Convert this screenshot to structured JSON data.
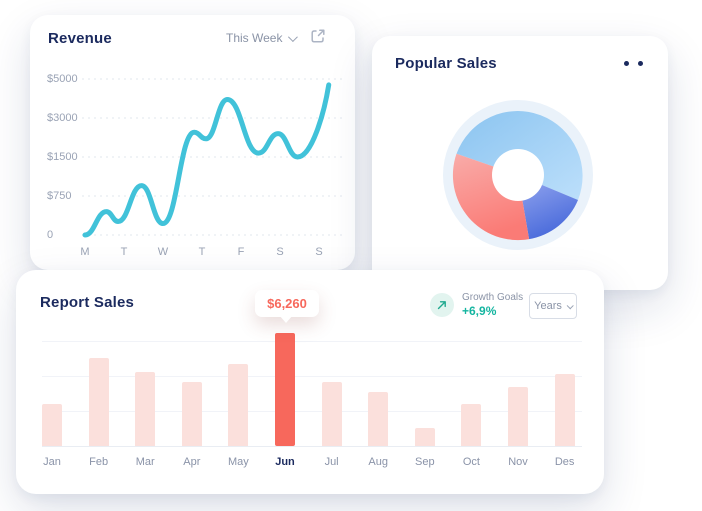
{
  "colors": {
    "navy": "#1B2A5E",
    "teal_line": "#41C2D9",
    "coral": "#F7685C",
    "coral_light": "#FBE0DC",
    "green_teal": "#14B5A0",
    "gray_text": "#8A93A6",
    "donut_halo": "#EAF2FA"
  },
  "revenue": {
    "title": "Revenue",
    "period_label": "This Week",
    "chart_data": {
      "type": "line",
      "title": "Revenue",
      "x_labels": [
        "M",
        "T",
        "W",
        "T",
        "F",
        "S",
        "S"
      ],
      "y_tick_labels": [
        "$5000",
        "$3000",
        "$1500",
        "$750",
        "0"
      ],
      "y_tick_values": [
        5000,
        3000,
        1500,
        750,
        0
      ],
      "grid": "dashed-horizontal",
      "line_color": "#41C2D9",
      "points": [
        {
          "day": 0.0,
          "usd": 0
        },
        {
          "day": 0.55,
          "usd": 450
        },
        {
          "day": 0.85,
          "usd": 260
        },
        {
          "day": 1.45,
          "usd": 950
        },
        {
          "day": 2.0,
          "usd": 220
        },
        {
          "day": 2.8,
          "usd": 2450
        },
        {
          "day": 3.1,
          "usd": 2200
        },
        {
          "day": 3.65,
          "usd": 3950
        },
        {
          "day": 4.45,
          "usd": 1650
        },
        {
          "day": 4.95,
          "usd": 2400
        },
        {
          "day": 5.45,
          "usd": 1500
        },
        {
          "day": 6.25,
          "usd": 4700
        }
      ]
    }
  },
  "popular": {
    "title": "Popular Sales",
    "menu_icon": "two-dots-menu",
    "chart_data": {
      "type": "pie",
      "donut": true,
      "start_angle_deg_from_top": 289,
      "segments": [
        {
          "name": "light-blue",
          "pct": 51,
          "color_from": "#8BC4F0",
          "color_to": "#BCDFFB"
        },
        {
          "name": "dark-blue",
          "pct": 16,
          "color_from": "#97A9F0",
          "color_to": "#4A6BDB"
        },
        {
          "name": "salmon",
          "pct": 33,
          "color_from": "#F9ACA9",
          "color_to": "#FA7B76"
        }
      ],
      "legend": "none"
    }
  },
  "report": {
    "title": "Report Sales",
    "tooltip_value": "$6,260",
    "growth": {
      "label": "Growth Goals",
      "value": "+6,9%",
      "icon": "trend-up-arrow"
    },
    "period_selector_label": "Years",
    "chart_data": {
      "type": "bar",
      "categories": [
        "Jan",
        "Feb",
        "Mar",
        "Apr",
        "May",
        "Jun",
        "Jul",
        "Aug",
        "Sep",
        "Oct",
        "Nov",
        "Des"
      ],
      "values_usd_approx": [
        2330,
        4880,
        4100,
        3550,
        4540,
        6260,
        3550,
        2990,
        1000,
        2330,
        3270,
        3990
      ],
      "highlight_index": 5,
      "highlight_value_label": "$6,260",
      "bar_color": "#FBE0DC",
      "highlight_color": "#F7685C",
      "ylim": [
        0,
        6500
      ],
      "grid": "light-horizontal"
    }
  }
}
